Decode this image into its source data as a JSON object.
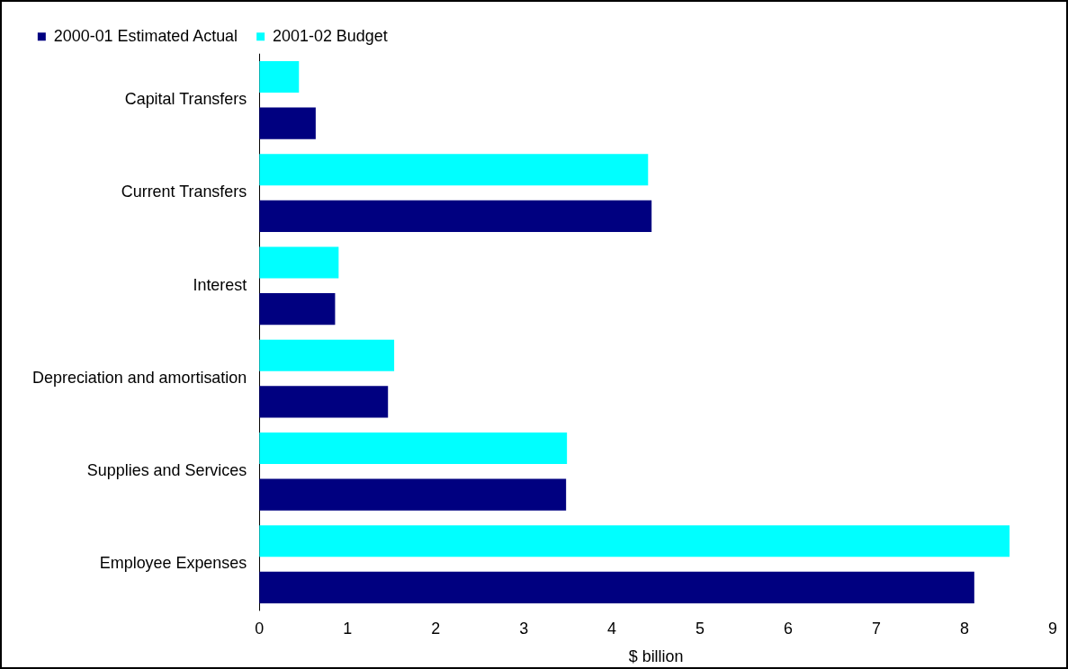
{
  "chart_data": {
    "type": "bar",
    "orientation": "horizontal",
    "xlabel": "$ billion",
    "categories": [
      "Capital Transfers",
      "Current Transfers",
      "Interest",
      "Depreciation and amortisation",
      "Supplies and Services",
      "Employee Expenses"
    ],
    "series": [
      {
        "name": "2000-01 Estimated Actual",
        "color": "#000080",
        "values": [
          0.64,
          4.45,
          0.86,
          1.46,
          3.48,
          8.11
        ]
      },
      {
        "name": "2001-02 Budget",
        "color": "#00ffff",
        "values": [
          0.45,
          4.41,
          0.9,
          1.53,
          3.49,
          8.51
        ]
      }
    ],
    "xlim": [
      0,
      9
    ],
    "xticks": [
      0,
      1,
      2,
      3,
      4,
      5,
      6,
      7,
      8,
      9
    ],
    "grid": false,
    "legend": "top left"
  }
}
